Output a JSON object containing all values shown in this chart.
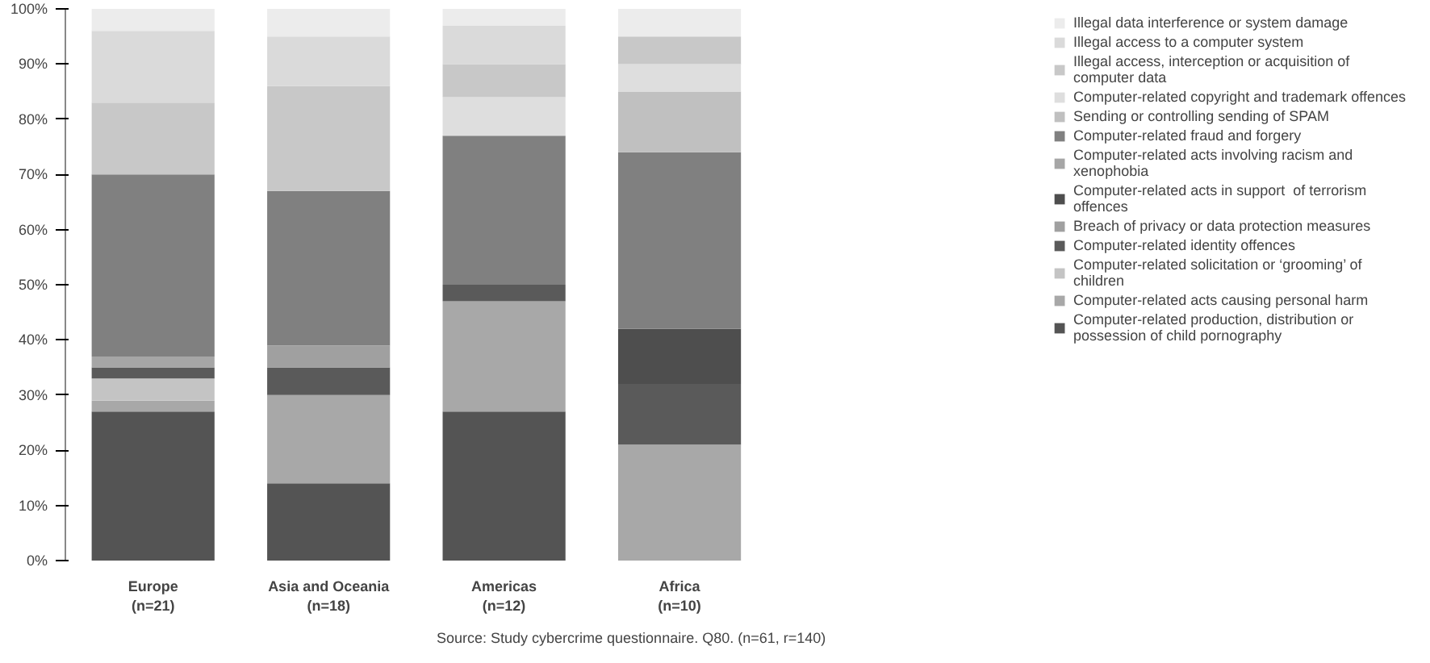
{
  "chart_data": {
    "type": "bar",
    "stacked": true,
    "categories": [
      "Europe\n(n=21)",
      "Asia and Oceania\n(n=18)",
      "Americas\n(n=12)",
      "Africa\n(n=10)"
    ],
    "ylim": [
      0,
      100
    ],
    "yticks": [
      {
        "value": 0,
        "label": "0%"
      },
      {
        "value": 10,
        "label": "10%"
      },
      {
        "value": 20,
        "label": "20%"
      },
      {
        "value": 30,
        "label": "30%"
      },
      {
        "value": 40,
        "label": "40%"
      },
      {
        "value": 50,
        "label": "50%"
      },
      {
        "value": 60,
        "label": "60%"
      },
      {
        "value": 70,
        "label": "70%"
      },
      {
        "value": 80,
        "label": "80%"
      },
      {
        "value": 90,
        "label": "90%"
      },
      {
        "value": 100,
        "label": "100%"
      }
    ],
    "grid": false,
    "legend": "right",
    "annotations": [
      "Source: Study cybercrime questionnaire. Q80. (n=61, r=140)"
    ],
    "series": [
      {
        "name": "Computer-related production, distribution or possession of child pornography",
        "color": "#545454",
        "values": [
          27,
          14,
          27,
          0
        ]
      },
      {
        "name": "Computer-related acts causing personal harm",
        "color": "#a8a8a8",
        "values": [
          2,
          16,
          20,
          21
        ]
      },
      {
        "name": "Computer-related solicitation or ‘grooming’ of children",
        "color": "#c4c4c4",
        "values": [
          4,
          0,
          0,
          0
        ]
      },
      {
        "name": "Computer-related identity offences",
        "color": "#5a5a5a",
        "values": [
          2,
          5,
          3,
          11
        ]
      },
      {
        "name": "Breach of privacy or data protection measures",
        "color": "#a0a0a0",
        "values": [
          0,
          4,
          0,
          0
        ]
      },
      {
        "name": "Computer-related acts in support  of terrorism offences",
        "color": "#4e4e4e",
        "values": [
          0,
          0,
          0,
          10
        ]
      },
      {
        "name": "Computer-related acts involving racism and xenophobia",
        "color": "#a6a6a6",
        "values": [
          2,
          0,
          0,
          0
        ]
      },
      {
        "name": "Computer-related fraud and forgery",
        "color": "#808080",
        "values": [
          33,
          28,
          27,
          32
        ]
      },
      {
        "name": "Sending or controlling sending of SPAM",
        "color": "#c0c0c0",
        "values": [
          0,
          0,
          0,
          11
        ]
      },
      {
        "name": "Computer-related copyright and trademark offences",
        "color": "#dedede",
        "values": [
          0,
          0,
          7,
          5
        ]
      },
      {
        "name": "Illegal access, interception or acquisition of computer data",
        "color": "#c8c8c8",
        "values": [
          13,
          19,
          6,
          5
        ]
      },
      {
        "name": "Illegal access to a computer system",
        "color": "#dadada",
        "values": [
          13,
          9,
          7,
          0
        ]
      },
      {
        "name": "Illegal data interference or system damage",
        "color": "#ececec",
        "values": [
          4,
          5,
          3,
          5
        ]
      }
    ]
  }
}
